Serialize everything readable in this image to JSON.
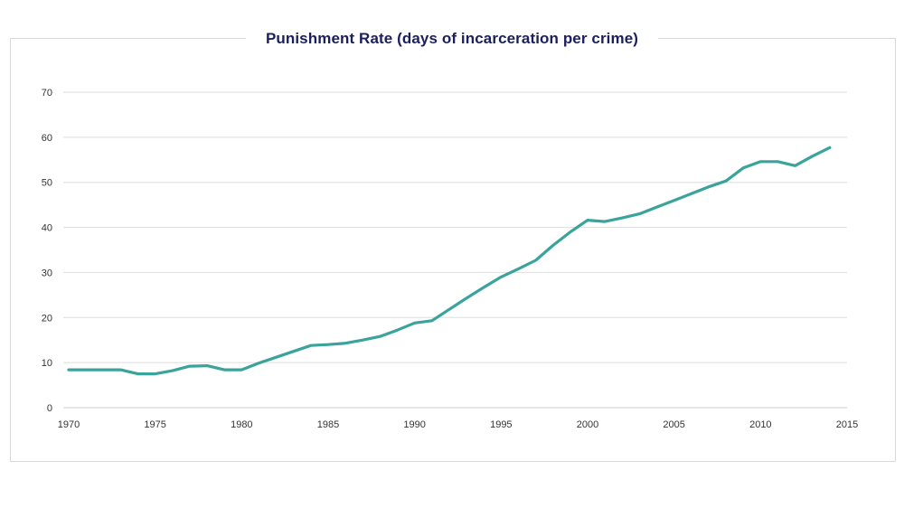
{
  "chart_data": {
    "type": "line",
    "title": "Punishment Rate (days of incarceration per crime)",
    "xlabel": "",
    "ylabel": "",
    "xlim": [
      1970,
      2015
    ],
    "ylim": [
      0,
      70
    ],
    "x_ticks": [
      1970,
      1975,
      1980,
      1985,
      1990,
      1995,
      2000,
      2005,
      2010,
      2015
    ],
    "y_ticks": [
      0,
      10,
      20,
      30,
      40,
      50,
      60,
      70
    ],
    "grid": true,
    "series": [
      {
        "name": "Punishment Rate",
        "color": "#3aa39b",
        "x": [
          1970,
          1971,
          1972,
          1973,
          1974,
          1975,
          1976,
          1977,
          1978,
          1979,
          1980,
          1981,
          1982,
          1983,
          1984,
          1985,
          1986,
          1987,
          1988,
          1989,
          1990,
          1991,
          1992,
          1993,
          1994,
          1995,
          1996,
          1997,
          1998,
          1999,
          2000,
          2001,
          2002,
          2003,
          2004,
          2005,
          2006,
          2007,
          2008,
          2009,
          2010,
          2011,
          2012,
          2013,
          2014
        ],
        "values": [
          8.4,
          8.4,
          8.4,
          8.4,
          7.5,
          7.5,
          8.2,
          9.2,
          9.3,
          8.4,
          8.4,
          9.9,
          11.2,
          12.5,
          13.8,
          14.0,
          14.3,
          15.0,
          15.8,
          17.2,
          18.8,
          19.3,
          21.8,
          24.3,
          26.7,
          29.0,
          30.8,
          32.7,
          36.0,
          39.0,
          41.6,
          41.3,
          42.1,
          43.0,
          44.5,
          46.0,
          47.5,
          49.0,
          50.3,
          53.2,
          54.6,
          54.6,
          53.7,
          55.8,
          57.7
        ]
      }
    ]
  }
}
